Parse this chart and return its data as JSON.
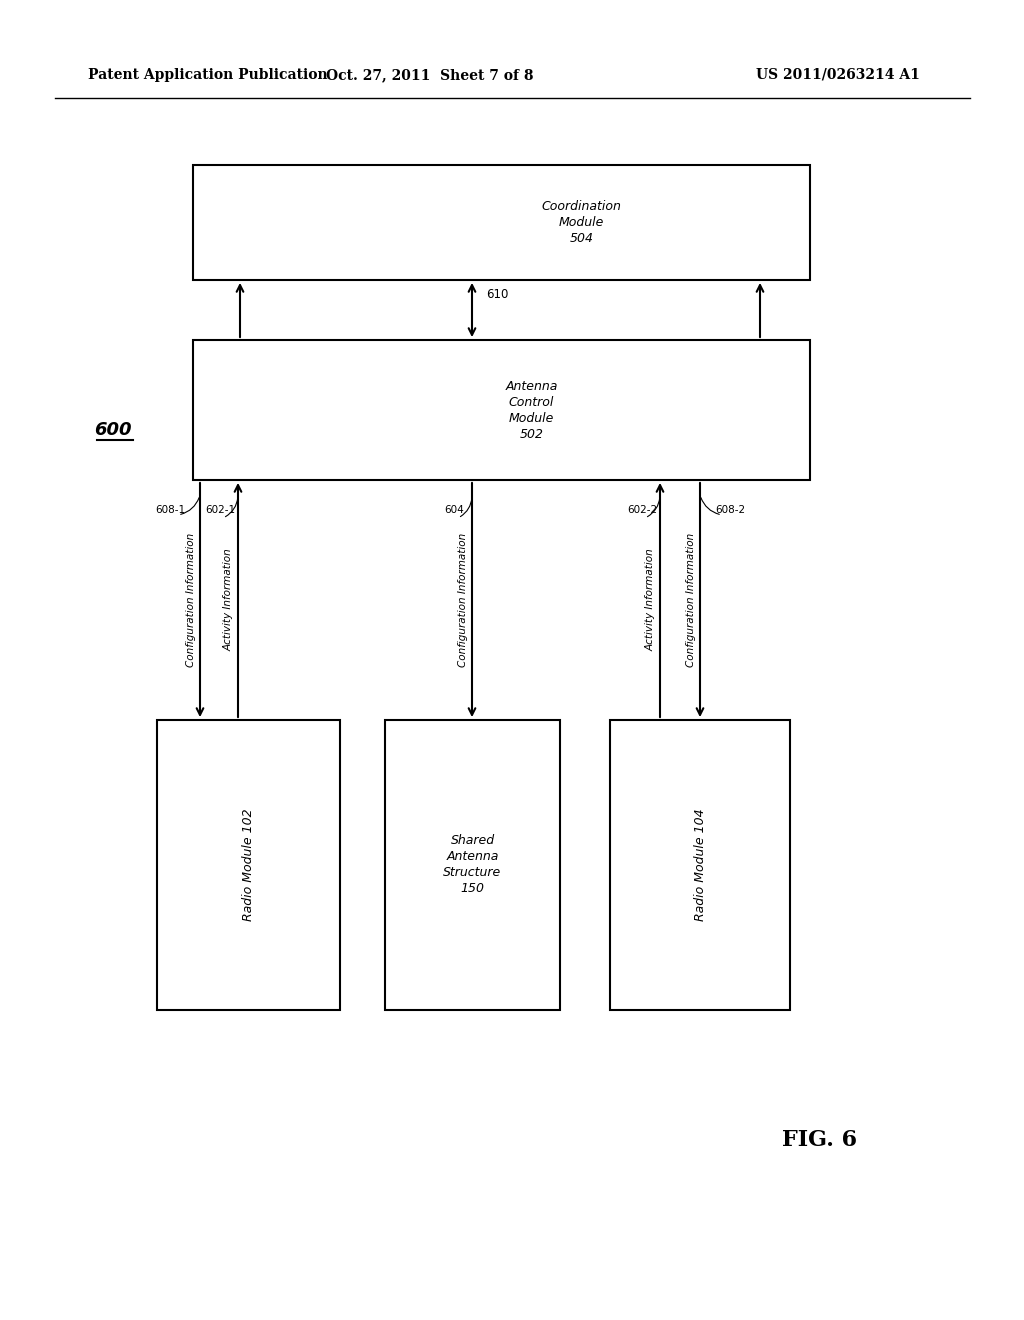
{
  "header_left": "Patent Application Publication",
  "header_center": "Oct. 27, 2011  Sheet 7 of 8",
  "header_right": "US 2011/0263214 A1",
  "fig_label": "FIG. 6",
  "fig_number": "600",
  "background_color": "#ffffff",
  "box_edge_color": "#000000"
}
